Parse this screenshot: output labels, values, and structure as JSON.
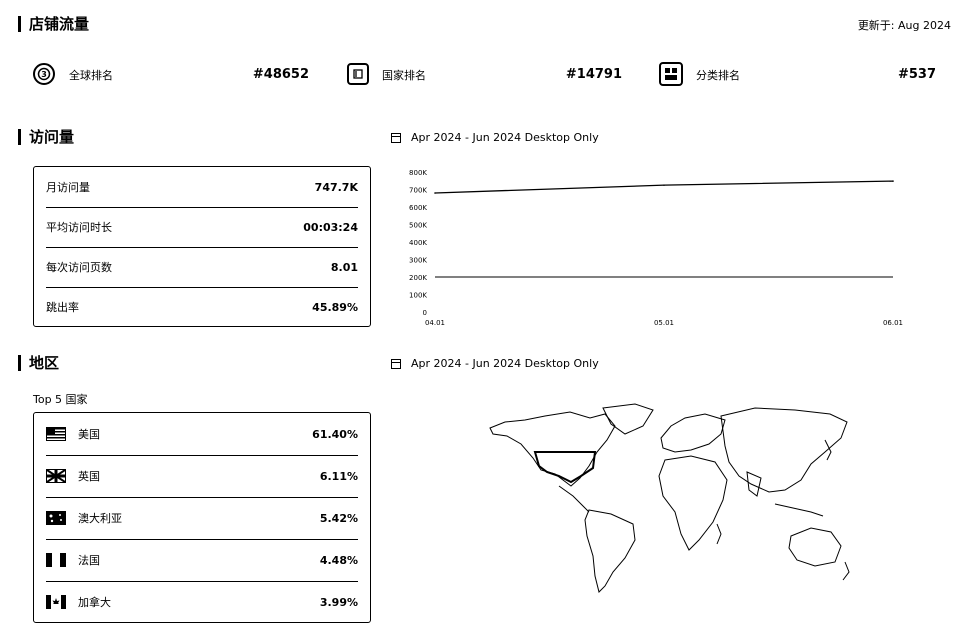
{
  "store_traffic": {
    "title": "店铺流量",
    "updated": "更新于: Aug 2024"
  },
  "rankings": [
    {
      "label": "全球排名",
      "value": "#48652",
      "icon": "globe-icon"
    },
    {
      "label": "国家排名",
      "value": "#14791",
      "icon": "flag-icon"
    },
    {
      "label": "分类排名",
      "value": "#537",
      "icon": "category-icon"
    }
  ],
  "visits": {
    "title": "访问量",
    "period": "Apr 2024 - Jun 2024 Desktop Only",
    "metrics": [
      {
        "label": "月访问量",
        "value": "747.7K"
      },
      {
        "label": "平均访问时长",
        "value": "00:03:24"
      },
      {
        "label": "每次访问页数",
        "value": "8.01"
      },
      {
        "label": "跳出率",
        "value": "45.89%"
      }
    ]
  },
  "chart_data": {
    "type": "line",
    "x": [
      "04.01",
      "05.01",
      "06.01"
    ],
    "series": [
      {
        "values": [
          680000,
          725000,
          748000
        ]
      }
    ],
    "ylim": [
      0,
      800000
    ],
    "yticks": [
      "0",
      "100K",
      "200K",
      "300K",
      "400K",
      "500K",
      "600K",
      "700K",
      "800K"
    ],
    "xlabel": "",
    "ylabel": "",
    "grid": false
  },
  "region": {
    "title": "地区",
    "period": "Apr 2024 - Jun 2024 Desktop Only",
    "top5_label": "Top 5 国家",
    "countries": [
      {
        "name": "美国",
        "value": "61.40%",
        "flag": "us-flag-icon"
      },
      {
        "name": "英国",
        "value": "6.11%",
        "flag": "uk-flag-icon"
      },
      {
        "name": "澳大利亚",
        "value": "5.42%",
        "flag": "au-flag-icon"
      },
      {
        "name": "法国",
        "value": "4.48%",
        "flag": "fr-flag-icon"
      },
      {
        "name": "加拿大",
        "value": "3.99%",
        "flag": "ca-flag-icon"
      }
    ]
  }
}
